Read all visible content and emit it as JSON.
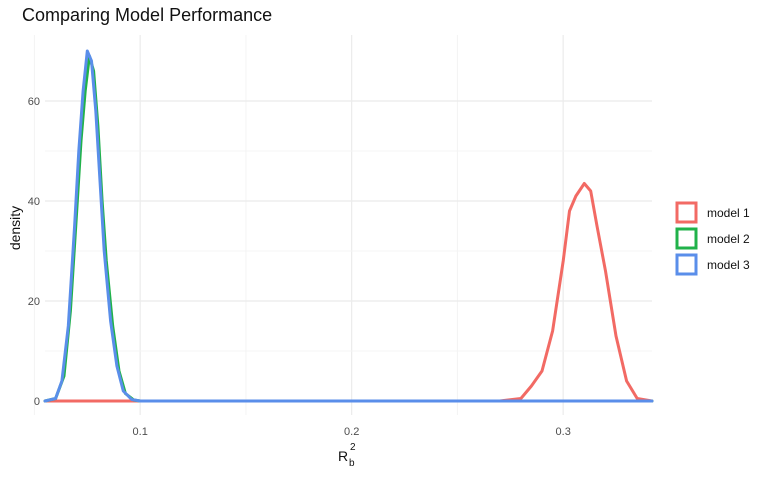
{
  "chart_data": {
    "type": "line",
    "title": "Comparing Model Performance",
    "xlabel": "R_b^2",
    "xlabel_parts": {
      "base": "R",
      "subscript": "b",
      "superscript": "2"
    },
    "ylabel": "density",
    "xlim": [
      0.055,
      0.342
    ],
    "ylim": [
      0,
      70
    ],
    "x_ticks": [
      0.1,
      0.2,
      0.3
    ],
    "x_tick_labels": [
      "0.1",
      "0.2",
      "0.3"
    ],
    "y_ticks": [
      0,
      20,
      40,
      60
    ],
    "y_tick_labels": [
      "0",
      "20",
      "40",
      "60"
    ],
    "grid": true,
    "legend": "right",
    "series": [
      {
        "name": "model 1",
        "color": "#F26A64",
        "x": [
          0.055,
          0.27,
          0.28,
          0.285,
          0.29,
          0.295,
          0.3,
          0.303,
          0.306,
          0.31,
          0.313,
          0.316,
          0.32,
          0.325,
          0.33,
          0.335,
          0.342
        ],
        "y": [
          0,
          0,
          0.5,
          3,
          6,
          14,
          28,
          38,
          41,
          43.5,
          42,
          35,
          26,
          13,
          4,
          0.5,
          0
        ]
      },
      {
        "name": "model 2",
        "color": "#20B24A",
        "x": [
          0.055,
          0.06,
          0.064,
          0.067,
          0.07,
          0.072,
          0.074,
          0.076,
          0.078,
          0.08,
          0.082,
          0.084,
          0.087,
          0.09,
          0.093,
          0.097,
          0.1,
          0.342
        ],
        "y": [
          0,
          0.5,
          5,
          18,
          38,
          52,
          62,
          69,
          66,
          55,
          40,
          28,
          15,
          6,
          1.5,
          0.2,
          0,
          0
        ]
      },
      {
        "name": "model 3",
        "color": "#5A8EEA",
        "x": [
          0.055,
          0.06,
          0.063,
          0.066,
          0.069,
          0.071,
          0.073,
          0.075,
          0.077,
          0.079,
          0.081,
          0.083,
          0.086,
          0.089,
          0.092,
          0.096,
          0.1,
          0.342
        ],
        "y": [
          0,
          0.5,
          4,
          15,
          35,
          50,
          62,
          70,
          68,
          58,
          44,
          30,
          16,
          7,
          2,
          0.3,
          0,
          0
        ]
      }
    ]
  }
}
